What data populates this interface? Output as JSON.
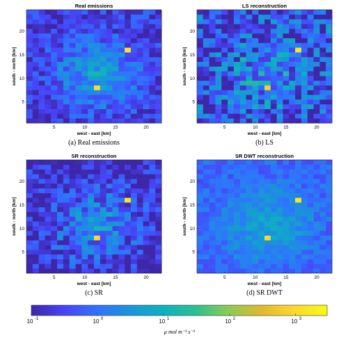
{
  "chart_data": [
    {
      "type": "heatmap",
      "title": "Real emissions",
      "caption": "(a) Real emissions",
      "xlabel": "west - east [km]",
      "ylabel": "south - north [km]",
      "xticks": [
        5,
        10,
        15,
        20
      ],
      "yticks": [
        5,
        10,
        15,
        20
      ],
      "xlim": [
        0.5,
        22.5
      ],
      "ylim": [
        0.5,
        24.5
      ],
      "grid_size": [
        22,
        24
      ],
      "hotspots": [
        {
          "x": 17,
          "y": 16,
          "value": 1500
        },
        {
          "x": 12,
          "y": 8,
          "value": 1000
        }
      ],
      "seed": 11,
      "base_log": -0.6,
      "center_boost": 1.3,
      "noise": 0.55
    },
    {
      "type": "heatmap",
      "title": "LS reconstruction",
      "caption": "(b) LS",
      "xlabel": "west - east [km]",
      "ylabel": "south - north [km]",
      "xticks": [
        5,
        10,
        15,
        20
      ],
      "yticks": [
        5,
        10,
        15,
        20
      ],
      "xlim": [
        0.5,
        22.5
      ],
      "ylim": [
        0.5,
        24.5
      ],
      "grid_size": [
        22,
        24
      ],
      "hotspots": [
        {
          "x": 17,
          "y": 16,
          "value": 1500
        },
        {
          "x": 12,
          "y": 8,
          "value": 700
        }
      ],
      "seed": 23,
      "base_log": -0.4,
      "center_boost": 1.0,
      "noise": 1.1
    },
    {
      "type": "heatmap",
      "title": "SR reconstruction",
      "caption": "(c) SR",
      "xlabel": "west - east [km]",
      "ylabel": "south - north [km]",
      "xticks": [
        5,
        10,
        15,
        20
      ],
      "yticks": [
        5,
        10,
        15,
        20
      ],
      "xlim": [
        0.5,
        22.5
      ],
      "ylim": [
        0.5,
        24.5
      ],
      "grid_size": [
        22,
        24
      ],
      "hotspots": [
        {
          "x": 17,
          "y": 16,
          "value": 1500
        },
        {
          "x": 12,
          "y": 8,
          "value": 1000
        }
      ],
      "seed": 37,
      "base_log": -0.8,
      "center_boost": 1.3,
      "noise": 0.75
    },
    {
      "type": "heatmap",
      "title": "SR DWT reconstruction",
      "caption": "(d) SR DWT",
      "xlabel": "west - east [km]",
      "ylabel": "south - north [km]",
      "xticks": [
        5,
        10,
        15,
        20
      ],
      "yticks": [
        5,
        10,
        15,
        20
      ],
      "xlim": [
        0.5,
        22.5
      ],
      "ylim": [
        0.5,
        24.5
      ],
      "grid_size": [
        22,
        24
      ],
      "hotspots": [
        {
          "x": 17,
          "y": 16,
          "value": 1500
        },
        {
          "x": 12,
          "y": 8,
          "value": 900
        }
      ],
      "seed": 53,
      "base_log": -0.1,
      "center_boost": 0.9,
      "noise": 0.35
    }
  ],
  "colorbar": {
    "scale": "log",
    "min": 0.1,
    "max": 3000,
    "ticks": [
      {
        "value": 0.1,
        "mantissa": "10",
        "exponent": "-1"
      },
      {
        "value": 1,
        "mantissa": "10",
        "exponent": "0"
      },
      {
        "value": 10,
        "mantissa": "10",
        "exponent": "1"
      },
      {
        "value": 100,
        "mantissa": "10",
        "exponent": "2"
      },
      {
        "value": 1000,
        "mantissa": "10",
        "exponent": "3"
      }
    ],
    "label": "μ mol m⁻² s⁻¹",
    "colormap": "parula",
    "colors": [
      "#3e26a8",
      "#4743f8",
      "#2f73fe",
      "#1995d8",
      "#0cb1c2",
      "#2ac190",
      "#8ccc56",
      "#e0b92b",
      "#fcd82e",
      "#f9fb0e"
    ]
  }
}
